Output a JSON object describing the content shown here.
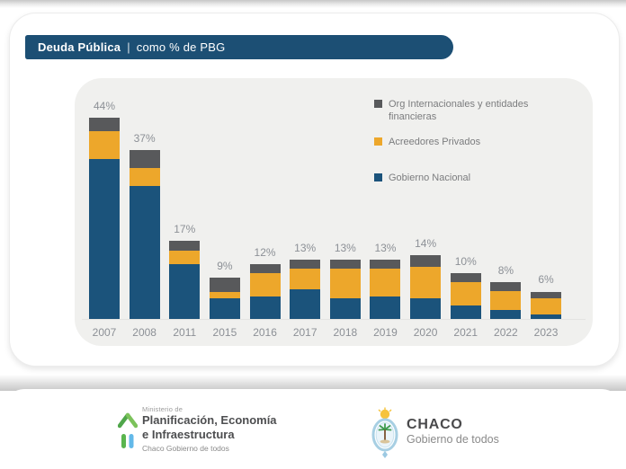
{
  "header": {
    "title_bold": "Deuda Pública",
    "separator": "|",
    "title_rest": "como % de PBG"
  },
  "chart_data": {
    "type": "bar",
    "stacked": true,
    "title": "Deuda Pública como % de PBG",
    "unit": "%",
    "categories": [
      "2007",
      "2008",
      "2011",
      "2015",
      "2016",
      "2017",
      "2018",
      "2019",
      "2020",
      "2021",
      "2022",
      "2023"
    ],
    "totals": [
      44,
      37,
      17,
      9,
      12,
      13,
      13,
      13,
      14,
      10,
      8,
      6
    ],
    "total_labels": [
      "44%",
      "37%",
      "17%",
      "9%",
      "12%",
      "13%",
      "13%",
      "13%",
      "14%",
      "10%",
      "8%",
      "6%"
    ],
    "series": [
      {
        "name": "Gobierno Nacional",
        "slug": "gobierno-nacional",
        "color": "#1B537B",
        "values": [
          35,
          29,
          12,
          4.5,
          5,
          6.5,
          4.5,
          5,
          4.5,
          3,
          2,
          1
        ]
      },
      {
        "name": "Acreedores Privados",
        "slug": "acreedores-privados",
        "color": "#EDA72B",
        "values": [
          6,
          4,
          3,
          1.5,
          5,
          4.5,
          6.5,
          6,
          7,
          5,
          4,
          3.5
        ]
      },
      {
        "name": "Org Internacionales y entidades financieras",
        "slug": "org-internacionales",
        "color": "#58595B",
        "values": [
          3,
          4,
          2,
          3,
          2,
          2,
          2,
          2,
          2.5,
          2,
          2,
          1.5
        ]
      }
    ],
    "legend_position": "top-right",
    "ylim": [
      0,
      48
    ],
    "grid": false
  },
  "colors": {
    "header_bar": "#1C4F74",
    "plot_background": "#F0F0EE",
    "card_background": "#FFFFFF",
    "axis_label": "#8C9096",
    "legend_text": "#7B7C7E"
  },
  "footer": {
    "ministry": {
      "overline": "Ministerio de",
      "name_line1": "Planificación, Economía",
      "name_line2": "e Infraestructura",
      "tagline": "Chaco Gobierno de todos"
    },
    "province": {
      "name": "CHACO",
      "tagline": "Gobierno de todos"
    }
  }
}
